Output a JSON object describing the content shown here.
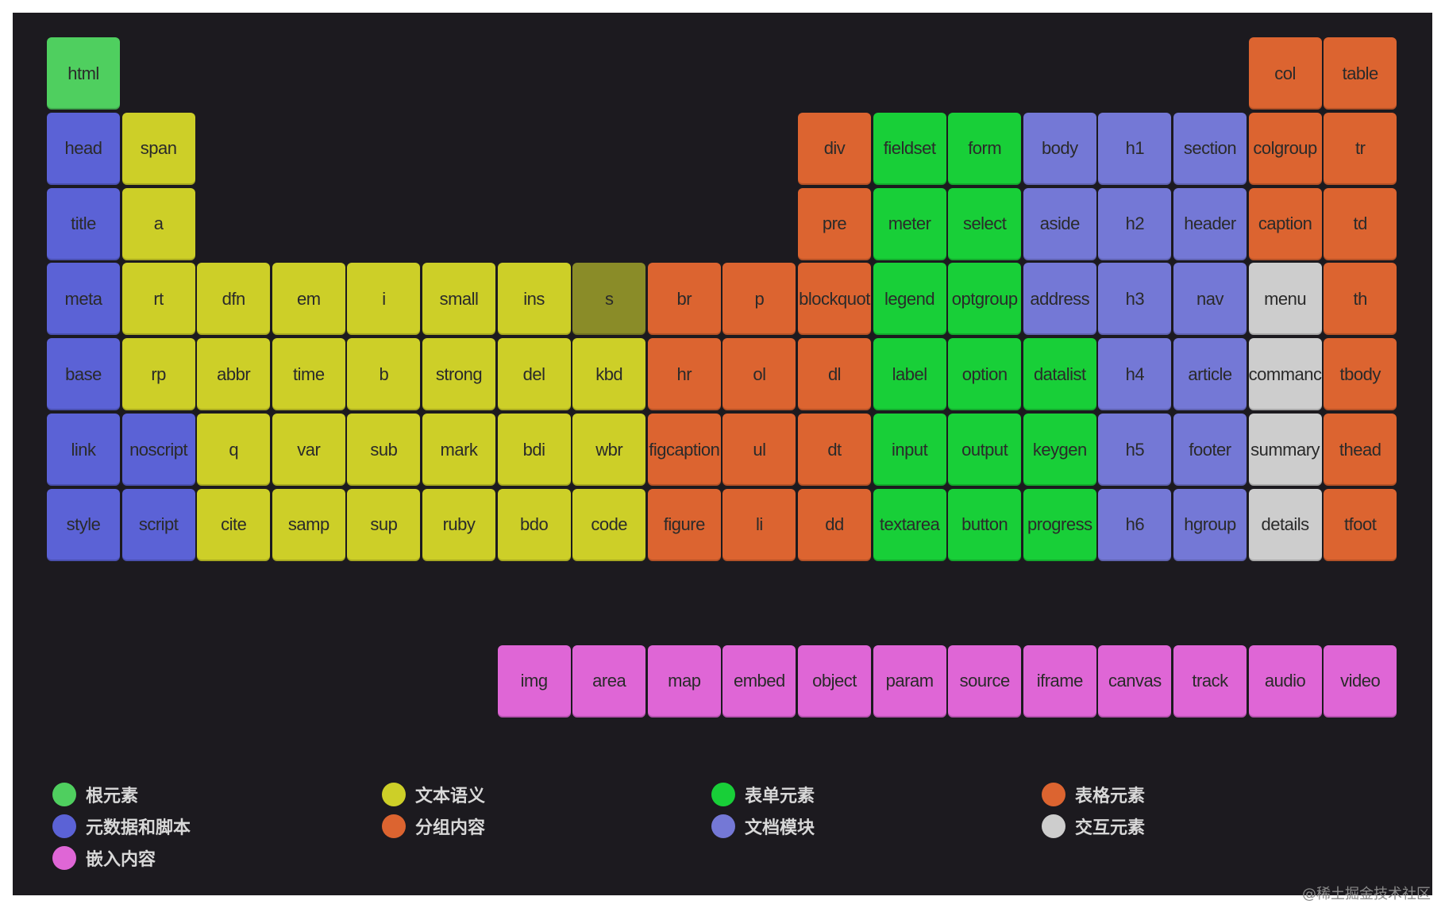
{
  "colors": {
    "root": "#4fcf5f",
    "meta": "#5b62d6",
    "text": "#cdcf28",
    "text_dark": "#8a8c28",
    "group": "#dc6430",
    "form": "#18cf38",
    "section": "#7478d6",
    "table": "#dc6430",
    "interactive": "#cdcdcd",
    "embedded": "#df66d6"
  },
  "elements": [
    {
      "label": "html",
      "col": 0,
      "row": 0,
      "cat": "root"
    },
    {
      "label": "col",
      "col": 16,
      "row": 0,
      "cat": "table"
    },
    {
      "label": "table",
      "col": 17,
      "row": 0,
      "cat": "table"
    },
    {
      "label": "head",
      "col": 0,
      "row": 1,
      "cat": "meta"
    },
    {
      "label": "span",
      "col": 1,
      "row": 1,
      "cat": "text"
    },
    {
      "label": "div",
      "col": 10,
      "row": 1,
      "cat": "group"
    },
    {
      "label": "fieldset",
      "col": 11,
      "row": 1,
      "cat": "form"
    },
    {
      "label": "form",
      "col": 12,
      "row": 1,
      "cat": "form"
    },
    {
      "label": "body",
      "col": 13,
      "row": 1,
      "cat": "section"
    },
    {
      "label": "h1",
      "col": 14,
      "row": 1,
      "cat": "section"
    },
    {
      "label": "section",
      "col": 15,
      "row": 1,
      "cat": "section"
    },
    {
      "label": "colgroup",
      "col": 16,
      "row": 1,
      "cat": "table"
    },
    {
      "label": "tr",
      "col": 17,
      "row": 1,
      "cat": "table"
    },
    {
      "label": "title",
      "col": 0,
      "row": 2,
      "cat": "meta"
    },
    {
      "label": "a",
      "col": 1,
      "row": 2,
      "cat": "text"
    },
    {
      "label": "pre",
      "col": 10,
      "row": 2,
      "cat": "group"
    },
    {
      "label": "meter",
      "col": 11,
      "row": 2,
      "cat": "form"
    },
    {
      "label": "select",
      "col": 12,
      "row": 2,
      "cat": "form"
    },
    {
      "label": "aside",
      "col": 13,
      "row": 2,
      "cat": "section"
    },
    {
      "label": "h2",
      "col": 14,
      "row": 2,
      "cat": "section"
    },
    {
      "label": "header",
      "col": 15,
      "row": 2,
      "cat": "section"
    },
    {
      "label": "caption",
      "col": 16,
      "row": 2,
      "cat": "table"
    },
    {
      "label": "td",
      "col": 17,
      "row": 2,
      "cat": "table"
    },
    {
      "label": "meta",
      "col": 0,
      "row": 3,
      "cat": "meta"
    },
    {
      "label": "rt",
      "col": 1,
      "row": 3,
      "cat": "text"
    },
    {
      "label": "dfn",
      "col": 2,
      "row": 3,
      "cat": "text"
    },
    {
      "label": "em",
      "col": 3,
      "row": 3,
      "cat": "text"
    },
    {
      "label": "i",
      "col": 4,
      "row": 3,
      "cat": "text"
    },
    {
      "label": "small",
      "col": 5,
      "row": 3,
      "cat": "text"
    },
    {
      "label": "ins",
      "col": 6,
      "row": 3,
      "cat": "text"
    },
    {
      "label": "s",
      "col": 7,
      "row": 3,
      "cat": "text_dark"
    },
    {
      "label": "br",
      "col": 8,
      "row": 3,
      "cat": "group"
    },
    {
      "label": "p",
      "col": 9,
      "row": 3,
      "cat": "group"
    },
    {
      "label": "blockquot",
      "col": 10,
      "row": 3,
      "cat": "group"
    },
    {
      "label": "legend",
      "col": 11,
      "row": 3,
      "cat": "form"
    },
    {
      "label": "optgroup",
      "col": 12,
      "row": 3,
      "cat": "form"
    },
    {
      "label": "address",
      "col": 13,
      "row": 3,
      "cat": "section"
    },
    {
      "label": "h3",
      "col": 14,
      "row": 3,
      "cat": "section"
    },
    {
      "label": "nav",
      "col": 15,
      "row": 3,
      "cat": "section"
    },
    {
      "label": "menu",
      "col": 16,
      "row": 3,
      "cat": "interactive"
    },
    {
      "label": "th",
      "col": 17,
      "row": 3,
      "cat": "table"
    },
    {
      "label": "base",
      "col": 0,
      "row": 4,
      "cat": "meta"
    },
    {
      "label": "rp",
      "col": 1,
      "row": 4,
      "cat": "text"
    },
    {
      "label": "abbr",
      "col": 2,
      "row": 4,
      "cat": "text"
    },
    {
      "label": "time",
      "col": 3,
      "row": 4,
      "cat": "text"
    },
    {
      "label": "b",
      "col": 4,
      "row": 4,
      "cat": "text"
    },
    {
      "label": "strong",
      "col": 5,
      "row": 4,
      "cat": "text"
    },
    {
      "label": "del",
      "col": 6,
      "row": 4,
      "cat": "text"
    },
    {
      "label": "kbd",
      "col": 7,
      "row": 4,
      "cat": "text"
    },
    {
      "label": "hr",
      "col": 8,
      "row": 4,
      "cat": "group"
    },
    {
      "label": "ol",
      "col": 9,
      "row": 4,
      "cat": "group"
    },
    {
      "label": "dl",
      "col": 10,
      "row": 4,
      "cat": "group"
    },
    {
      "label": "label",
      "col": 11,
      "row": 4,
      "cat": "form"
    },
    {
      "label": "option",
      "col": 12,
      "row": 4,
      "cat": "form"
    },
    {
      "label": "datalist",
      "col": 13,
      "row": 4,
      "cat": "form"
    },
    {
      "label": "h4",
      "col": 14,
      "row": 4,
      "cat": "section"
    },
    {
      "label": "article",
      "col": 15,
      "row": 4,
      "cat": "section"
    },
    {
      "label": "commanc",
      "col": 16,
      "row": 4,
      "cat": "interactive"
    },
    {
      "label": "tbody",
      "col": 17,
      "row": 4,
      "cat": "table"
    },
    {
      "label": "link",
      "col": 0,
      "row": 5,
      "cat": "meta"
    },
    {
      "label": "noscript",
      "col": 1,
      "row": 5,
      "cat": "meta"
    },
    {
      "label": "q",
      "col": 2,
      "row": 5,
      "cat": "text"
    },
    {
      "label": "var",
      "col": 3,
      "row": 5,
      "cat": "text"
    },
    {
      "label": "sub",
      "col": 4,
      "row": 5,
      "cat": "text"
    },
    {
      "label": "mark",
      "col": 5,
      "row": 5,
      "cat": "text"
    },
    {
      "label": "bdi",
      "col": 6,
      "row": 5,
      "cat": "text"
    },
    {
      "label": "wbr",
      "col": 7,
      "row": 5,
      "cat": "text"
    },
    {
      "label": "figcaption",
      "col": 8,
      "row": 5,
      "cat": "group"
    },
    {
      "label": "ul",
      "col": 9,
      "row": 5,
      "cat": "group"
    },
    {
      "label": "dt",
      "col": 10,
      "row": 5,
      "cat": "group"
    },
    {
      "label": "input",
      "col": 11,
      "row": 5,
      "cat": "form"
    },
    {
      "label": "output",
      "col": 12,
      "row": 5,
      "cat": "form"
    },
    {
      "label": "keygen",
      "col": 13,
      "row": 5,
      "cat": "form"
    },
    {
      "label": "h5",
      "col": 14,
      "row": 5,
      "cat": "section"
    },
    {
      "label": "footer",
      "col": 15,
      "row": 5,
      "cat": "section"
    },
    {
      "label": "summary",
      "col": 16,
      "row": 5,
      "cat": "interactive"
    },
    {
      "label": "thead",
      "col": 17,
      "row": 5,
      "cat": "table"
    },
    {
      "label": "style",
      "col": 0,
      "row": 6,
      "cat": "meta"
    },
    {
      "label": "script",
      "col": 1,
      "row": 6,
      "cat": "meta"
    },
    {
      "label": "cite",
      "col": 2,
      "row": 6,
      "cat": "text"
    },
    {
      "label": "samp",
      "col": 3,
      "row": 6,
      "cat": "text"
    },
    {
      "label": "sup",
      "col": 4,
      "row": 6,
      "cat": "text"
    },
    {
      "label": "ruby",
      "col": 5,
      "row": 6,
      "cat": "text"
    },
    {
      "label": "bdo",
      "col": 6,
      "row": 6,
      "cat": "text"
    },
    {
      "label": "code",
      "col": 7,
      "row": 6,
      "cat": "text"
    },
    {
      "label": "figure",
      "col": 8,
      "row": 6,
      "cat": "group"
    },
    {
      "label": "li",
      "col": 9,
      "row": 6,
      "cat": "group"
    },
    {
      "label": "dd",
      "col": 10,
      "row": 6,
      "cat": "group"
    },
    {
      "label": "textarea",
      "col": 11,
      "row": 6,
      "cat": "form"
    },
    {
      "label": "button",
      "col": 12,
      "row": 6,
      "cat": "form"
    },
    {
      "label": "progress",
      "col": 13,
      "row": 6,
      "cat": "form"
    },
    {
      "label": "h6",
      "col": 14,
      "row": 6,
      "cat": "section"
    },
    {
      "label": "hgroup",
      "col": 15,
      "row": 6,
      "cat": "section"
    },
    {
      "label": "details",
      "col": 16,
      "row": 6,
      "cat": "interactive"
    },
    {
      "label": "tfoot",
      "col": 17,
      "row": 6,
      "cat": "table"
    },
    {
      "label": "img",
      "col": 6,
      "row": 8,
      "cat": "embedded"
    },
    {
      "label": "area",
      "col": 7,
      "row": 8,
      "cat": "embedded"
    },
    {
      "label": "map",
      "col": 8,
      "row": 8,
      "cat": "embedded"
    },
    {
      "label": "embed",
      "col": 9,
      "row": 8,
      "cat": "embedded"
    },
    {
      "label": "object",
      "col": 10,
      "row": 8,
      "cat": "embedded"
    },
    {
      "label": "param",
      "col": 11,
      "row": 8,
      "cat": "embedded"
    },
    {
      "label": "source",
      "col": 12,
      "row": 8,
      "cat": "embedded"
    },
    {
      "label": "iframe",
      "col": 13,
      "row": 8,
      "cat": "embedded"
    },
    {
      "label": "canvas",
      "col": 14,
      "row": 8,
      "cat": "embedded"
    },
    {
      "label": "track",
      "col": 15,
      "row": 8,
      "cat": "embedded"
    },
    {
      "label": "audio",
      "col": 16,
      "row": 8,
      "cat": "embedded"
    },
    {
      "label": "video",
      "col": 17,
      "row": 8,
      "cat": "embedded"
    }
  ],
  "legend": [
    {
      "label": "根元素",
      "cat": "root"
    },
    {
      "label": "元数据和脚本",
      "cat": "meta"
    },
    {
      "label": "嵌入内容",
      "cat": "embedded"
    },
    {
      "label": "文本语义",
      "cat": "text"
    },
    {
      "label": "分组内容",
      "cat": "group"
    },
    {
      "label": "表单元素",
      "cat": "form"
    },
    {
      "label": "文档模块",
      "cat": "section"
    },
    {
      "label": "表格元素",
      "cat": "table"
    },
    {
      "label": "交互元素",
      "cat": "interactive"
    }
  ],
  "watermark": "@稀土掘金技术社区"
}
